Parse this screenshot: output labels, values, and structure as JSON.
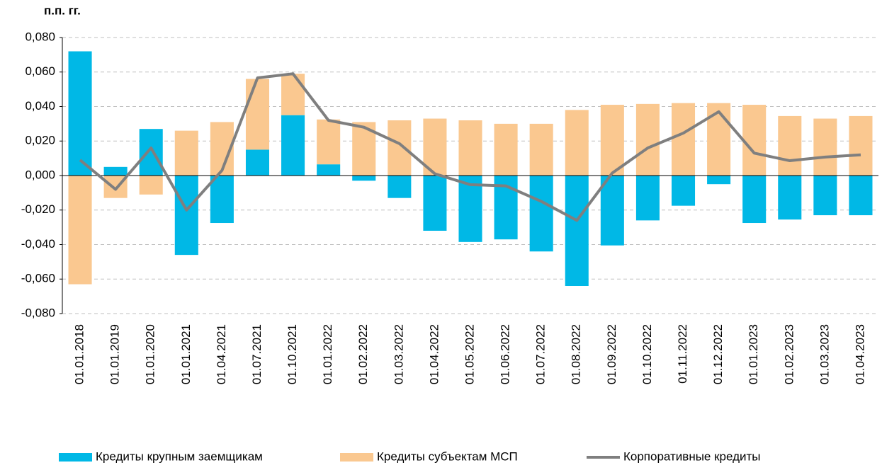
{
  "chart_data": {
    "type": "bar",
    "y_axis_label": "п.п. гг.",
    "categories": [
      "01.01.2018",
      "01.01.2019",
      "01.01.2020",
      "01.01.2021",
      "01.04.2021",
      "01.07.2021",
      "01.10.2021",
      "01.01.2022",
      "01.02.2022",
      "01.03.2022",
      "01.04.2022",
      "01.05.2022",
      "01.06.2022",
      "01.07.2022",
      "01.08.2022",
      "01.09.2022",
      "01.10.2022",
      "01.11.2022",
      "01.12.2022",
      "01.01.2023",
      "01.02.2023",
      "01.03.2023",
      "01.04.2023"
    ],
    "stacked": true,
    "series": [
      {
        "name": "Кредиты крупным заемщикам",
        "type": "bar",
        "color": "#00b8e6",
        "values": [
          0.072,
          0.005,
          0.027,
          -0.046,
          -0.0275,
          0.015,
          0.035,
          0.0065,
          -0.003,
          -0.013,
          -0.032,
          -0.0385,
          -0.037,
          -0.044,
          -0.064,
          -0.0405,
          -0.026,
          -0.0175,
          -0.005,
          -0.0275,
          -0.0255,
          -0.023,
          -0.023
        ]
      },
      {
        "name": "Кредиты субъектам МСП",
        "type": "bar",
        "color": "#fac890",
        "values": [
          -0.063,
          -0.013,
          -0.011,
          0.026,
          0.031,
          0.041,
          0.024,
          0.026,
          0.031,
          0.032,
          0.033,
          0.032,
          0.03,
          0.03,
          0.038,
          0.041,
          0.0415,
          0.042,
          0.042,
          0.041,
          0.0345,
          0.033,
          0.0345
        ]
      },
      {
        "name": "Корпоративные кредиты",
        "type": "line",
        "color": "#7f7f7f",
        "values": [
          0.009,
          -0.008,
          0.016,
          -0.02,
          0.003,
          0.0566,
          0.059,
          0.032,
          0.028,
          0.0185,
          0.001,
          -0.0053,
          -0.006,
          -0.015,
          -0.026,
          0.0015,
          0.016,
          0.0246,
          0.037,
          0.013,
          0.0086,
          0.0107,
          0.012
        ]
      }
    ],
    "ylim": [
      -0.08,
      0.08
    ],
    "yticks": [
      {
        "value": 0.08,
        "label": "0,080"
      },
      {
        "value": 0.06,
        "label": "0,060"
      },
      {
        "value": 0.04,
        "label": "0,040"
      },
      {
        "value": 0.02,
        "label": "0,020"
      },
      {
        "value": 0,
        "label": "0,000"
      },
      {
        "value": -0.02,
        "label": "-0,020"
      },
      {
        "value": -0.04,
        "label": "-0,040"
      },
      {
        "value": -0.06,
        "label": "-0,060"
      },
      {
        "value": -0.08,
        "label": "-0,080"
      }
    ],
    "grid": true,
    "legend": "bottom"
  }
}
